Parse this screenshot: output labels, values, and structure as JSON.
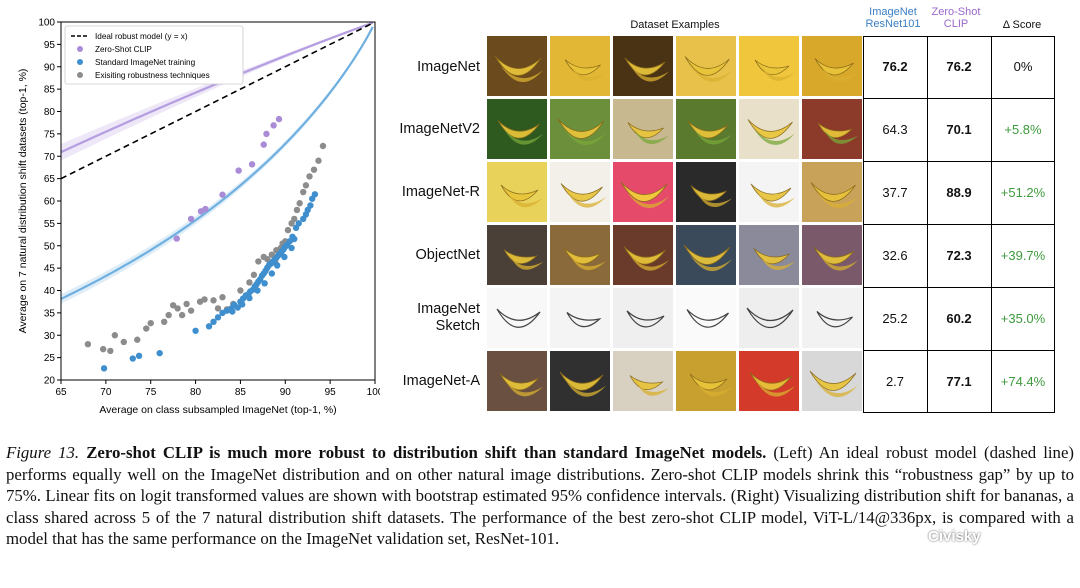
{
  "chart_data": {
    "type": "scatter",
    "xlabel": "Average on class subsampled ImageNet (top-1, %)",
    "ylabel": "Average on 7 natural distribution shift datasets (top-1, %)",
    "xlim": [
      65,
      100
    ],
    "ylim": [
      20,
      100
    ],
    "xticks": [
      65,
      70,
      75,
      80,
      85,
      90,
      95,
      100
    ],
    "yticks": [
      20,
      25,
      30,
      35,
      40,
      45,
      50,
      55,
      60,
      65,
      70,
      75,
      80,
      85,
      90,
      95,
      100
    ],
    "legend_position": "top-left",
    "legend": [
      "Ideal robust model (y = x)",
      "Zero-Shot CLIP",
      "Standard ImageNet training",
      "Exisiting robustness techniques"
    ],
    "colors": {
      "clip": "#a98bd6",
      "clip_fit": "#b49de0",
      "standard": "#3f8fce",
      "standard_fit": "#6fb0e0",
      "robust": "#8c8c8c",
      "ideal": "#000000"
    },
    "series": [
      {
        "name": "Zero-Shot CLIP",
        "points": [
          [
            77.9,
            51.6
          ],
          [
            79.5,
            56.0
          ],
          [
            80.6,
            57.7
          ],
          [
            81.1,
            58.2
          ],
          [
            83.0,
            61.4
          ],
          [
            84.8,
            66.8
          ],
          [
            86.3,
            68.2
          ],
          [
            87.6,
            72.6
          ],
          [
            87.9,
            75.0
          ],
          [
            88.7,
            76.9
          ],
          [
            89.3,
            78.3
          ]
        ]
      },
      {
        "name": "Standard ImageNet training",
        "points": [
          [
            69.8,
            22.6
          ],
          [
            73.0,
            24.8
          ],
          [
            73.7,
            25.4
          ],
          [
            76.0,
            26.0
          ],
          [
            80.0,
            31.0
          ],
          [
            81.5,
            32.0
          ],
          [
            82.0,
            33.0
          ],
          [
            82.5,
            34.0
          ],
          [
            83.0,
            35.0
          ],
          [
            83.5,
            35.5
          ],
          [
            84.0,
            36.0
          ],
          [
            84.3,
            36.8
          ],
          [
            84.7,
            36.2
          ],
          [
            85.0,
            37.5
          ],
          [
            85.3,
            38.2
          ],
          [
            85.6,
            38.9
          ],
          [
            85.9,
            39.2
          ],
          [
            86.1,
            39.8
          ],
          [
            86.4,
            40.2
          ],
          [
            86.6,
            40.9
          ],
          [
            86.8,
            41.4
          ],
          [
            87.0,
            42.0
          ],
          [
            87.2,
            42.5
          ],
          [
            87.4,
            43.3
          ],
          [
            87.6,
            43.8
          ],
          [
            87.8,
            44.4
          ],
          [
            88.0,
            45.1
          ],
          [
            88.2,
            45.7
          ],
          [
            88.4,
            46.0
          ],
          [
            88.6,
            46.4
          ],
          [
            88.8,
            46.9
          ],
          [
            89.0,
            47.3
          ],
          [
            89.2,
            47.8
          ],
          [
            89.4,
            48.2
          ],
          [
            89.6,
            48.7
          ],
          [
            89.8,
            49.2
          ],
          [
            90.0,
            49.8
          ],
          [
            90.2,
            50.2
          ],
          [
            90.5,
            51.0
          ],
          [
            90.8,
            52.0
          ],
          [
            91.2,
            54.0
          ],
          [
            91.5,
            55.0
          ],
          [
            92.0,
            56.0
          ],
          [
            92.3,
            57.0
          ],
          [
            92.5,
            58.0
          ],
          [
            92.8,
            59.0
          ],
          [
            93.0,
            60.5
          ],
          [
            93.3,
            61.5
          ],
          [
            84.1,
            35.3
          ],
          [
            85.2,
            36.9
          ],
          [
            86.0,
            38.3
          ],
          [
            86.9,
            40.0
          ],
          [
            87.7,
            41.6
          ],
          [
            88.5,
            43.8
          ],
          [
            89.1,
            45.6
          ],
          [
            89.9,
            47.5
          ],
          [
            90.7,
            49.5
          ],
          [
            91.0,
            51.5
          ]
        ]
      },
      {
        "name": "Exisiting robustness techniques",
        "points": [
          [
            68.0,
            28.0
          ],
          [
            69.7,
            26.9
          ],
          [
            70.5,
            26.5
          ],
          [
            71.0,
            30.0
          ],
          [
            72.0,
            28.5
          ],
          [
            73.5,
            29.0
          ],
          [
            74.5,
            31.5
          ],
          [
            75.0,
            32.7
          ],
          [
            76.5,
            33.0
          ],
          [
            77.0,
            34.5
          ],
          [
            77.5,
            36.7
          ],
          [
            78.0,
            36.0
          ],
          [
            78.5,
            34.5
          ],
          [
            79.0,
            37.0
          ],
          [
            79.5,
            35.5
          ],
          [
            80.5,
            37.5
          ],
          [
            81.0,
            38.0
          ],
          [
            82.0,
            37.8
          ],
          [
            82.5,
            36.0
          ],
          [
            83.0,
            38.5
          ],
          [
            83.5,
            35.8
          ],
          [
            84.2,
            37.0
          ],
          [
            85.0,
            40.0
          ],
          [
            86.0,
            41.8
          ],
          [
            86.5,
            43.5
          ],
          [
            87.0,
            46.5
          ],
          [
            87.6,
            47.5
          ],
          [
            88.0,
            47.0
          ],
          [
            88.5,
            48.0
          ],
          [
            89.0,
            49.0
          ],
          [
            89.5,
            49.5
          ],
          [
            90.0,
            51.0
          ],
          [
            90.3,
            53.5
          ],
          [
            90.7,
            55.0
          ],
          [
            91.0,
            56.0
          ],
          [
            91.3,
            58.0
          ],
          [
            91.6,
            59.5
          ],
          [
            92.0,
            62.0
          ],
          [
            92.3,
            63.5
          ],
          [
            92.7,
            65.5
          ],
          [
            93.2,
            67.0
          ],
          [
            93.7,
            69.0
          ],
          [
            94.2,
            72.3
          ],
          [
            88.9,
            46.2
          ],
          [
            89.7,
            50.5
          ]
        ]
      }
    ]
  },
  "table": {
    "title": "Dataset Examples",
    "col_resnet": "ImageNet ResNet101",
    "col_clip": "Zero-Shot CLIP",
    "col_delta": "Δ Score",
    "rows": [
      {
        "name": "ImageNet",
        "resnet": "76.2",
        "clip": "76.2",
        "delta": "0%"
      },
      {
        "name": "ImageNetV2",
        "resnet": "64.3",
        "clip": "70.1",
        "delta": "+5.8%"
      },
      {
        "name": "ImageNet-R",
        "resnet": "37.7",
        "clip": "88.9",
        "delta": "+51.2%"
      },
      {
        "name": "ObjectNet",
        "resnet": "32.6",
        "clip": "72.3",
        "delta": "+39.7%"
      },
      {
        "name": "ImageNet Sketch",
        "resnet": "25.2",
        "clip": "60.2",
        "delta": "+35.0%"
      },
      {
        "name": "ImageNet-A",
        "resnet": "2.7",
        "clip": "77.1",
        "delta": "+74.4%"
      }
    ]
  },
  "caption": {
    "figure": "Figure 13.",
    "title": "Zero-shot CLIP is much more robust to distribution shift than standard ImageNet models.",
    "body": " (Left) An ideal robust model (dashed line) performs equally well on the ImageNet distribution and on other natural image distributions. Zero-shot CLIP models shrink this “robustness gap” by up to 75%. Linear fits on logit transformed values are shown with bootstrap estimated 95% confidence intervals. (Right) Visualizing distribution shift for bananas, a class shared across 5 of the 7 natural distribution shift datasets. The performance of the best zero-shot CLIP model, ViT-L/14@336px, is compared with a model that has the same performance on the ImageNet validation set, ResNet-101."
  },
  "watermark": "Civisky"
}
